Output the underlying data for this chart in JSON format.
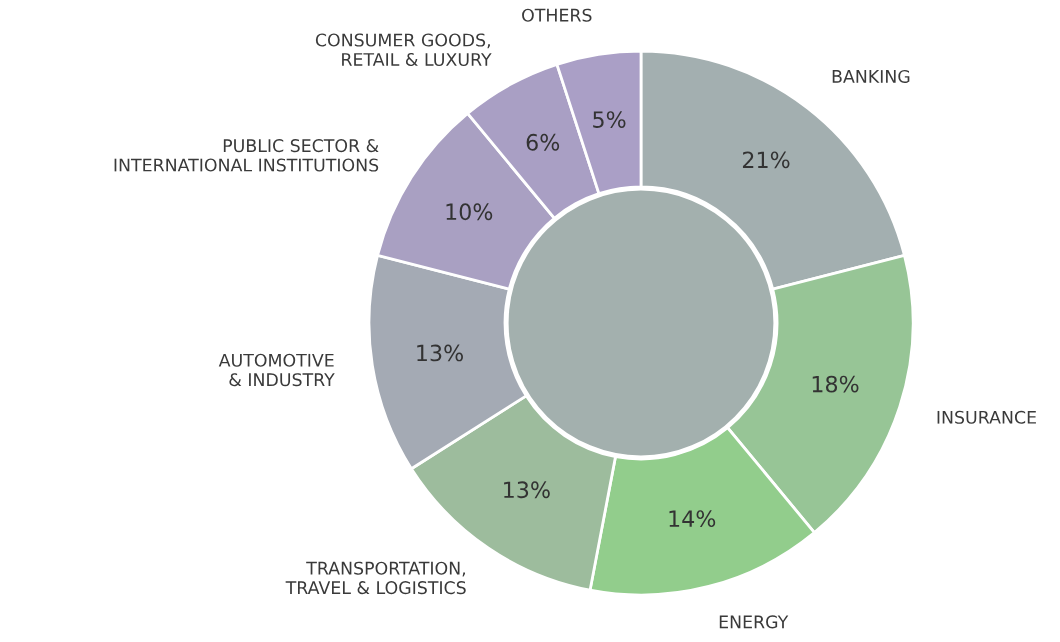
{
  "chart_data": {
    "type": "donut",
    "categories": [
      "BANKING",
      "INSURANCE",
      "ENERGY",
      "TRANSPORTATION,\nTRAVEL & LOGISTICS",
      "AUTOMOTIVE\n& INDUSTRY",
      "PUBLIC SECTOR &\nINTERNATIONAL INSTITUTIONS",
      "CONSUMER GOODS,\nRETAIL & LUXURY",
      "OTHERS"
    ],
    "values": [
      21,
      18,
      14,
      13,
      13,
      10,
      6,
      5
    ],
    "value_labels": [
      "21%",
      "18%",
      "14%",
      "13%",
      "13%",
      "10%",
      "6%",
      "5%"
    ],
    "colors": [
      "#a3afb0",
      "#97c596",
      "#92cd8c",
      "#9dbc9d",
      "#a4aab4",
      "#a9a0c2",
      "#a99fc4",
      "#aa9fc6"
    ]
  }
}
